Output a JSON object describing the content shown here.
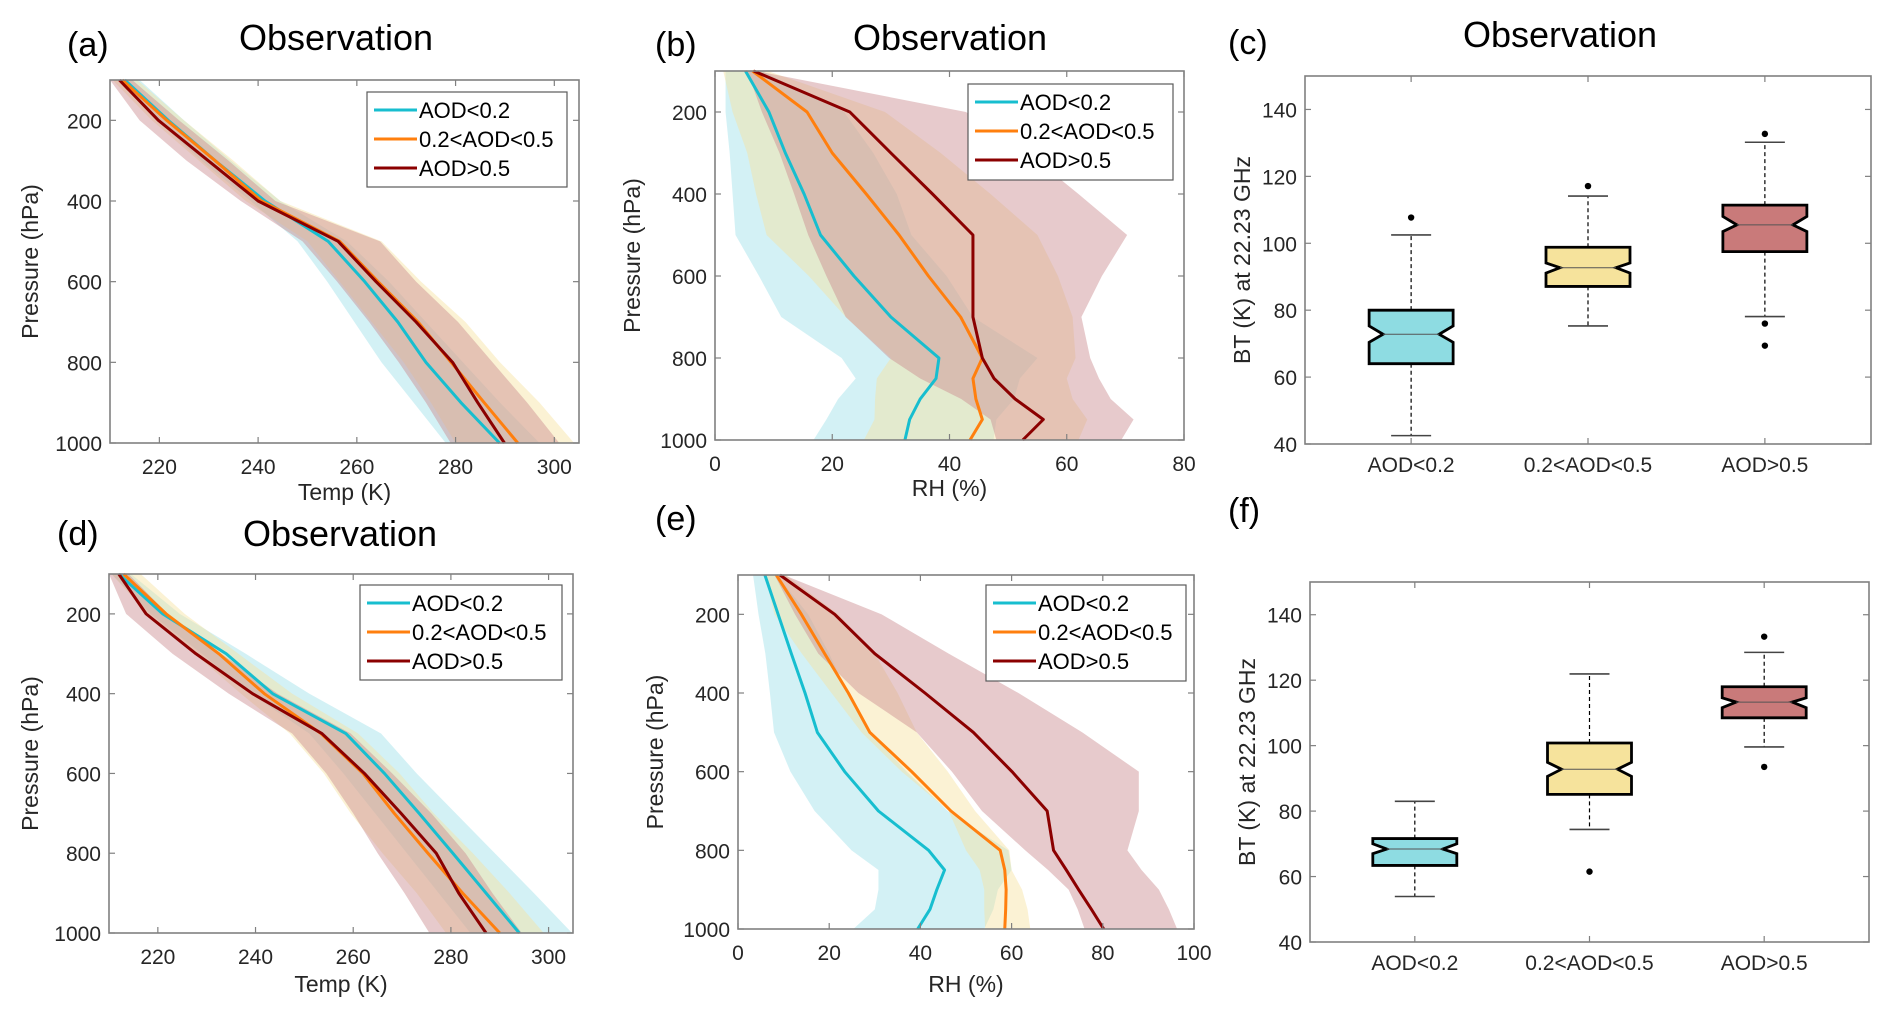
{
  "figure": {
    "panel_labels": [
      "(a)",
      "(b)",
      "(c)",
      "(d)",
      "(e)",
      "(f)"
    ],
    "titles": {
      "a": "Observation",
      "b": "Observation",
      "c": "Observation",
      "d": "Observation"
    }
  },
  "colors": {
    "aod_low": "#17BECF",
    "aod_mid": "#FF7F0E",
    "aod_high": "#8B0000",
    "band_low": "#9EE0E8",
    "band_mid": "#F7E3A0",
    "band_high": "#C98A8F",
    "box_low": "#8EDCE2",
    "box_mid": "#F6E39C",
    "box_high": "#C97A7A",
    "axis": "#808080"
  },
  "chart_data": [
    {
      "id": "a",
      "type": "line",
      "title": "Observation",
      "xlabel": "Temp (K)",
      "ylabel": "Pressure (hPa)",
      "xlim": [
        210,
        305
      ],
      "ylim": [
        1000,
        100
      ],
      "y_reversed": true,
      "xticks": [
        220,
        240,
        260,
        280,
        300
      ],
      "yticks": [
        200,
        400,
        600,
        800,
        1000
      ],
      "legend": [
        "AOD<0.2",
        "0.2<AOD<0.5",
        "AOD>0.5"
      ],
      "legend_position": "top-right",
      "pressure": [
        100,
        200,
        300,
        400,
        500,
        600,
        700,
        800,
        900,
        1000
      ],
      "series": [
        {
          "name": "AOD<0.2",
          "values": [
            213.0,
            221.8,
            231.3,
            241.4,
            254.2,
            261.6,
            268.3,
            274.0,
            281.1,
            288.9
          ],
          "band_low": [
            211.5,
            219.5,
            228.5,
            238.5,
            248.0,
            254.0,
            259.5,
            265.0,
            271.5,
            278.0
          ],
          "band_high": [
            216.0,
            225.0,
            234.5,
            244.5,
            258.0,
            266.5,
            274.0,
            281.5,
            289.0,
            297.0
          ]
        },
        {
          "name": "0.2<AOD<0.5",
          "values": [
            212.5,
            221.5,
            231.3,
            240.7,
            256.5,
            264.3,
            272.4,
            279.1,
            285.8,
            292.6
          ],
          "band_low": [
            210.5,
            218.5,
            228.0,
            237.5,
            250.0,
            256.5,
            263.0,
            269.5,
            275.0,
            280.0
          ],
          "band_high": [
            215.5,
            225.0,
            235.0,
            244.5,
            265.0,
            273.0,
            282.0,
            289.0,
            297.0,
            304.0
          ]
        },
        {
          "name": "AOD>0.5",
          "values": [
            211.9,
            219.8,
            229.9,
            240.0,
            256.2,
            263.9,
            272.0,
            279.4,
            284.5,
            289.9
          ],
          "band_low": [
            210.0,
            216.0,
            225.5,
            236.5,
            249.0,
            256.0,
            262.5,
            268.5,
            274.0,
            279.0
          ],
          "band_high": [
            214.5,
            224.0,
            234.0,
            243.5,
            264.7,
            272.0,
            280.5,
            287.5,
            294.5,
            301.0
          ]
        }
      ]
    },
    {
      "id": "b",
      "type": "line",
      "title": "Observation",
      "xlabel": "RH (%)",
      "ylabel": "Pressure (hPa)",
      "xlim": [
        0,
        80
      ],
      "ylim": [
        1000,
        100
      ],
      "y_reversed": true,
      "xticks": [
        0,
        20,
        40,
        60,
        80
      ],
      "yticks": [
        200,
        400,
        600,
        800,
        1000
      ],
      "legend": [
        "AOD<0.2",
        "0.2<AOD<0.5",
        "AOD>0.5"
      ],
      "legend_position": "top-right",
      "pressure": [
        100,
        200,
        300,
        400,
        500,
        600,
        700,
        800,
        850,
        900,
        950,
        1000
      ],
      "series": [
        {
          "name": "AOD<0.2",
          "values": [
            5.2,
            9.2,
            12.0,
            15.2,
            18.0,
            23.7,
            30.0,
            38.2,
            37.7,
            35.0,
            33.2,
            32.4
          ],
          "band_low": [
            1.8,
            1.8,
            2.5,
            3.0,
            3.5,
            7.5,
            11.3,
            21.6,
            24.0,
            21.0,
            19.0,
            16.8
          ],
          "band_high": [
            8.0,
            22.0,
            27.0,
            31.0,
            33.5,
            39.5,
            44.0,
            55.0,
            52.0,
            51.0,
            48.0,
            47.5
          ]
        },
        {
          "name": "0.2<AOD<0.5",
          "values": [
            6.4,
            15.7,
            20.0,
            25.8,
            31.4,
            36.4,
            41.9,
            45.6,
            44.0,
            44.5,
            45.6,
            43.5
          ],
          "band_low": [
            1.4,
            3.0,
            5.5,
            7.0,
            8.8,
            16.0,
            22.3,
            30.0,
            27.6,
            27.3,
            27.2,
            25.4
          ],
          "band_high": [
            9.0,
            29.0,
            38.5,
            47.0,
            55.0,
            58.5,
            61.0,
            61.5,
            60.0,
            61.0,
            63.5,
            62.0
          ]
        },
        {
          "name": "AOD>0.5",
          "values": [
            6.6,
            23.0,
            30.0,
            37.1,
            44.0,
            44.0,
            44.0,
            45.6,
            47.6,
            51.2,
            56.0,
            52.5
          ],
          "band_low": [
            5.5,
            8.0,
            11.0,
            13.5,
            15.9,
            19.0,
            22.3,
            29.7,
            35.0,
            42.0,
            47.0,
            48.0
          ],
          "band_high": [
            7.0,
            42.8,
            53.4,
            62.0,
            70.3,
            66.0,
            62.5,
            64.0,
            65.5,
            67.5,
            71.4,
            69.3
          ]
        }
      ]
    },
    {
      "id": "c",
      "type": "box",
      "title": "Observation",
      "xlabel": "",
      "ylabel": "BT (K) at 22.23 GHz",
      "ylim": [
        40,
        150
      ],
      "yticks": [
        40,
        60,
        80,
        100,
        120,
        140
      ],
      "categories": [
        "AOD<0.2",
        "0.2<AOD<0.5",
        "AOD>0.5"
      ],
      "boxes": [
        {
          "name": "AOD<0.2",
          "whisker_low": 42.5,
          "q1": 64.0,
          "notch_low": 70.4,
          "median": 72.8,
          "notch_high": 75.3,
          "q3": 80.0,
          "whisker_high": 102.5,
          "outliers": [
            107.7
          ]
        },
        {
          "name": "0.2<AOD<0.5",
          "whisker_low": 75.3,
          "q1": 87.1,
          "notch_low": 91.1,
          "median": 92.7,
          "notch_high": 94.1,
          "q3": 98.8,
          "whisker_high": 114.1,
          "outliers": [
            117.1
          ]
        },
        {
          "name": "AOD>0.5",
          "whisker_low": 78.1,
          "q1": 97.5,
          "notch_low": 103.5,
          "median": 105.5,
          "notch_high": 108.0,
          "q3": 111.4,
          "whisker_high": 130.2,
          "outliers": [
            132.7,
            76.0,
            69.4
          ]
        }
      ]
    },
    {
      "id": "d",
      "type": "line",
      "title": "Observation",
      "xlabel": "Temp (K)",
      "ylabel": "Pressure (hPa)",
      "xlim": [
        210,
        305
      ],
      "ylim": [
        1000,
        100
      ],
      "y_reversed": true,
      "xticks": [
        220,
        240,
        260,
        280,
        300
      ],
      "yticks": [
        200,
        400,
        600,
        800,
        1000
      ],
      "legend": [
        "AOD<0.2",
        "0.2<AOD<0.5",
        "AOD>0.5"
      ],
      "legend_position": "top-right",
      "pressure": [
        100,
        200,
        300,
        400,
        500,
        600,
        700,
        800,
        900,
        1000
      ],
      "series": [
        {
          "name": "AOD<0.2",
          "values": [
            212.0,
            221.0,
            234.0,
            243.5,
            258.5,
            266.4,
            273.5,
            280.4,
            287.2,
            294.0
          ],
          "band_low": [
            210.5,
            218.5,
            229.0,
            239.0,
            251.0,
            258.0,
            264.5,
            271.0,
            277.5,
            284.0
          ],
          "band_high": [
            214.5,
            224.5,
            238.0,
            251.0,
            265.7,
            273.0,
            281.0,
            289.0,
            297.0,
            304.8
          ]
        },
        {
          "name": "0.2<AOD<0.5",
          "values": [
            213.0,
            221.7,
            232.5,
            241.8,
            253.4,
            262.0,
            268.4,
            275.3,
            282.4,
            290.0
          ],
          "band_low": [
            210.5,
            218.0,
            227.5,
            237.0,
            247.0,
            254.0,
            259.5,
            266.0,
            273.0,
            279.0
          ],
          "band_high": [
            216.5,
            225.5,
            236.5,
            247.5,
            261.0,
            269.5,
            276.5,
            284.5,
            292.0,
            299.0
          ]
        },
        {
          "name": "AOD>0.5",
          "values": [
            212.0,
            217.6,
            227.8,
            239.4,
            253.6,
            262.3,
            269.8,
            277.0,
            281.6,
            287.2
          ],
          "band_low": [
            210.0,
            213.5,
            223.0,
            234.5,
            247.5,
            254.5,
            260.0,
            265.0,
            270.5,
            275.6
          ],
          "band_high": [
            214.0,
            222.0,
            233.0,
            244.5,
            259.5,
            268.0,
            276.0,
            283.0,
            288.5,
            294.5
          ]
        }
      ]
    },
    {
      "id": "e",
      "type": "line",
      "title": "",
      "xlabel": "RH (%)",
      "ylabel": "Pressure (hPa)",
      "xlim": [
        0,
        100
      ],
      "ylim": [
        1000,
        100
      ],
      "y_reversed": true,
      "xticks": [
        0,
        20,
        40,
        60,
        80,
        100
      ],
      "yticks": [
        200,
        400,
        600,
        800,
        1000
      ],
      "legend": [
        "AOD<0.2",
        "0.2<AOD<0.5",
        "AOD>0.5"
      ],
      "legend_position": "top-right",
      "pressure": [
        100,
        200,
        300,
        400,
        500,
        600,
        700,
        800,
        850,
        900,
        950,
        1000
      ],
      "series": [
        {
          "name": "AOD<0.2",
          "values": [
            5.9,
            8.8,
            11.7,
            14.7,
            17.4,
            23.4,
            30.8,
            41.8,
            45.3,
            43.6,
            42.1,
            39.4
          ],
          "band_low": [
            3.3,
            4.5,
            6.0,
            7.0,
            7.9,
            11.5,
            16.8,
            24.9,
            30.8,
            30.8,
            30.0,
            25.3
          ],
          "band_high": [
            8.5,
            15.4,
            20.0,
            24.0,
            29.0,
            37.0,
            46.0,
            59.3,
            60.0,
            57.0,
            56.0,
            54.0
          ]
        },
        {
          "name": "0.2<AOD<0.5",
          "values": [
            8.4,
            13.9,
            19.0,
            24.2,
            28.9,
            38.1,
            46.7,
            57.5,
            58.5,
            58.8,
            58.7,
            58.5
          ],
          "band_low": [
            5.9,
            8.0,
            14.0,
            20.5,
            27.1,
            35.9,
            46.2,
            50.0,
            53.0,
            54.0,
            54.0,
            54.2
          ],
          "band_high": [
            10.5,
            22.0,
            30.0,
            35.0,
            39.2,
            46.0,
            52.0,
            59.5,
            60.0,
            62.3,
            63.5,
            64.1
          ]
        },
        {
          "name": "AOD>0.5",
          "values": [
            9.2,
            21.2,
            30.0,
            41.0,
            51.6,
            60.1,
            67.8,
            69.2,
            72.0,
            74.7,
            77.5,
            80.2
          ],
          "band_low": [
            8.0,
            12.5,
            17.6,
            26.4,
            39.2,
            46.9,
            53.5,
            63.0,
            68.0,
            72.5,
            74.5,
            76.0
          ],
          "band_high": [
            10.0,
            31.5,
            46.2,
            61.5,
            75.5,
            87.9,
            87.9,
            85.4,
            88.5,
            92.3,
            94.5,
            96.3
          ]
        }
      ]
    },
    {
      "id": "f",
      "type": "box",
      "title": "",
      "xlabel": "",
      "ylabel": "BT (K) at 22.23 GHz",
      "ylim": [
        40,
        150
      ],
      "yticks": [
        40,
        60,
        80,
        100,
        120,
        140
      ],
      "categories": [
        "AOD<0.2",
        "0.2<AOD<0.5",
        "AOD>0.5"
      ],
      "boxes": [
        {
          "name": "AOD<0.2",
          "whisker_low": 53.9,
          "q1": 63.4,
          "notch_low": 67.0,
          "median": 68.4,
          "notch_high": 70.0,
          "q3": 71.6,
          "whisker_high": 83.0,
          "outliers": []
        },
        {
          "name": "0.2<AOD<0.5",
          "whisker_low": 74.4,
          "q1": 85.1,
          "notch_low": 90.6,
          "median": 92.8,
          "notch_high": 94.9,
          "q3": 100.8,
          "whisker_high": 121.9,
          "outliers": [
            61.5
          ]
        },
        {
          "name": "AOD>0.5",
          "whisker_low": 99.6,
          "q1": 108.5,
          "notch_low": 111.6,
          "median": 113.3,
          "notch_high": 114.6,
          "q3": 118.0,
          "whisker_high": 128.5,
          "outliers": [
            133.3,
            93.5
          ]
        }
      ]
    }
  ]
}
